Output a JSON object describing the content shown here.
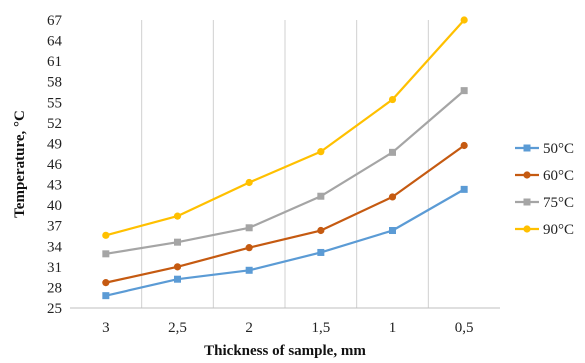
{
  "chart_data": {
    "type": "line",
    "xlabel": "Thickness of sample, mm",
    "ylabel": "Temperature, °C",
    "categories": [
      "3",
      "2,5",
      "2",
      "1,5",
      "1",
      "0,5"
    ],
    "y_ticks": [
      25,
      28,
      31,
      34,
      37,
      40,
      43,
      46,
      49,
      52,
      55,
      58,
      61,
      64,
      67
    ],
    "ylim": [
      25,
      67
    ],
    "grid": "vertical",
    "legend_position": "right",
    "series": [
      {
        "name": "50°C",
        "color": "#5B9BD5",
        "marker": "square",
        "values": [
          26.8,
          29.2,
          30.5,
          33.1,
          36.3,
          42.3
        ]
      },
      {
        "name": "60°C",
        "color": "#C55A11",
        "marker": "circle",
        "values": [
          28.7,
          31.0,
          33.8,
          36.3,
          41.2,
          48.7
        ]
      },
      {
        "name": "75°C",
        "color": "#A5A5A5",
        "marker": "square",
        "values": [
          32.9,
          34.6,
          36.7,
          41.3,
          47.7,
          56.7
        ]
      },
      {
        "name": "90°C",
        "color": "#FFC000",
        "marker": "circle",
        "values": [
          35.6,
          38.4,
          43.3,
          47.8,
          55.4,
          67.0
        ]
      }
    ]
  }
}
